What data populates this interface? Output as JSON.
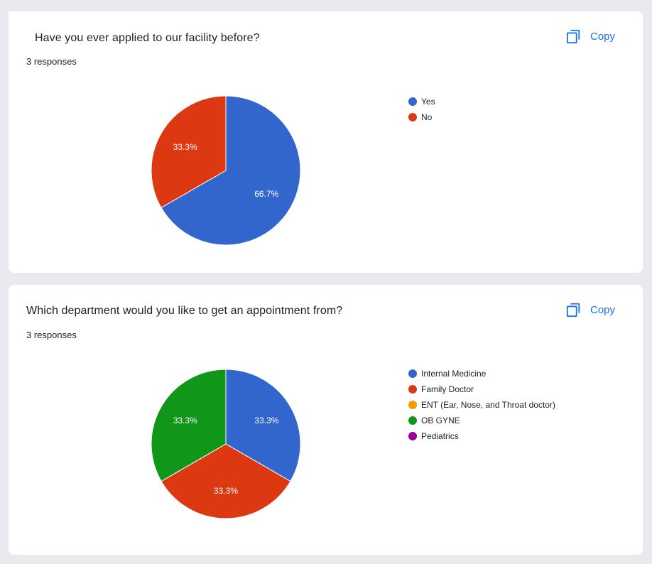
{
  "questions": [
    {
      "title": "Have you ever applied to our facility before?",
      "responses": "3 responses",
      "copy_label": "Copy",
      "chart_data": {
        "type": "pie",
        "categories": [
          "Yes",
          "No"
        ],
        "values": [
          66.7,
          33.3
        ],
        "labels": [
          "66.7%",
          "33.3%"
        ],
        "colors": [
          "#3366cc",
          "#dc3912"
        ],
        "legend_position": "right"
      }
    },
    {
      "title": "Which department would you like to get an appointment from?",
      "responses": "3 responses",
      "copy_label": "Copy",
      "chart_data": {
        "type": "pie",
        "categories": [
          "Internal Medicine",
          "Family Doctor",
          "ENT (Ear, Nose, and Throat doctor)",
          "OB GYNE",
          "Pediatrics"
        ],
        "values": [
          33.3,
          33.3,
          0,
          33.3,
          0
        ],
        "labels": [
          "33.3%",
          "33.3%",
          "",
          "33.3%",
          ""
        ],
        "colors": [
          "#3366cc",
          "#dc3912",
          "#ff9900",
          "#109618",
          "#990099"
        ],
        "legend_position": "right"
      }
    }
  ]
}
